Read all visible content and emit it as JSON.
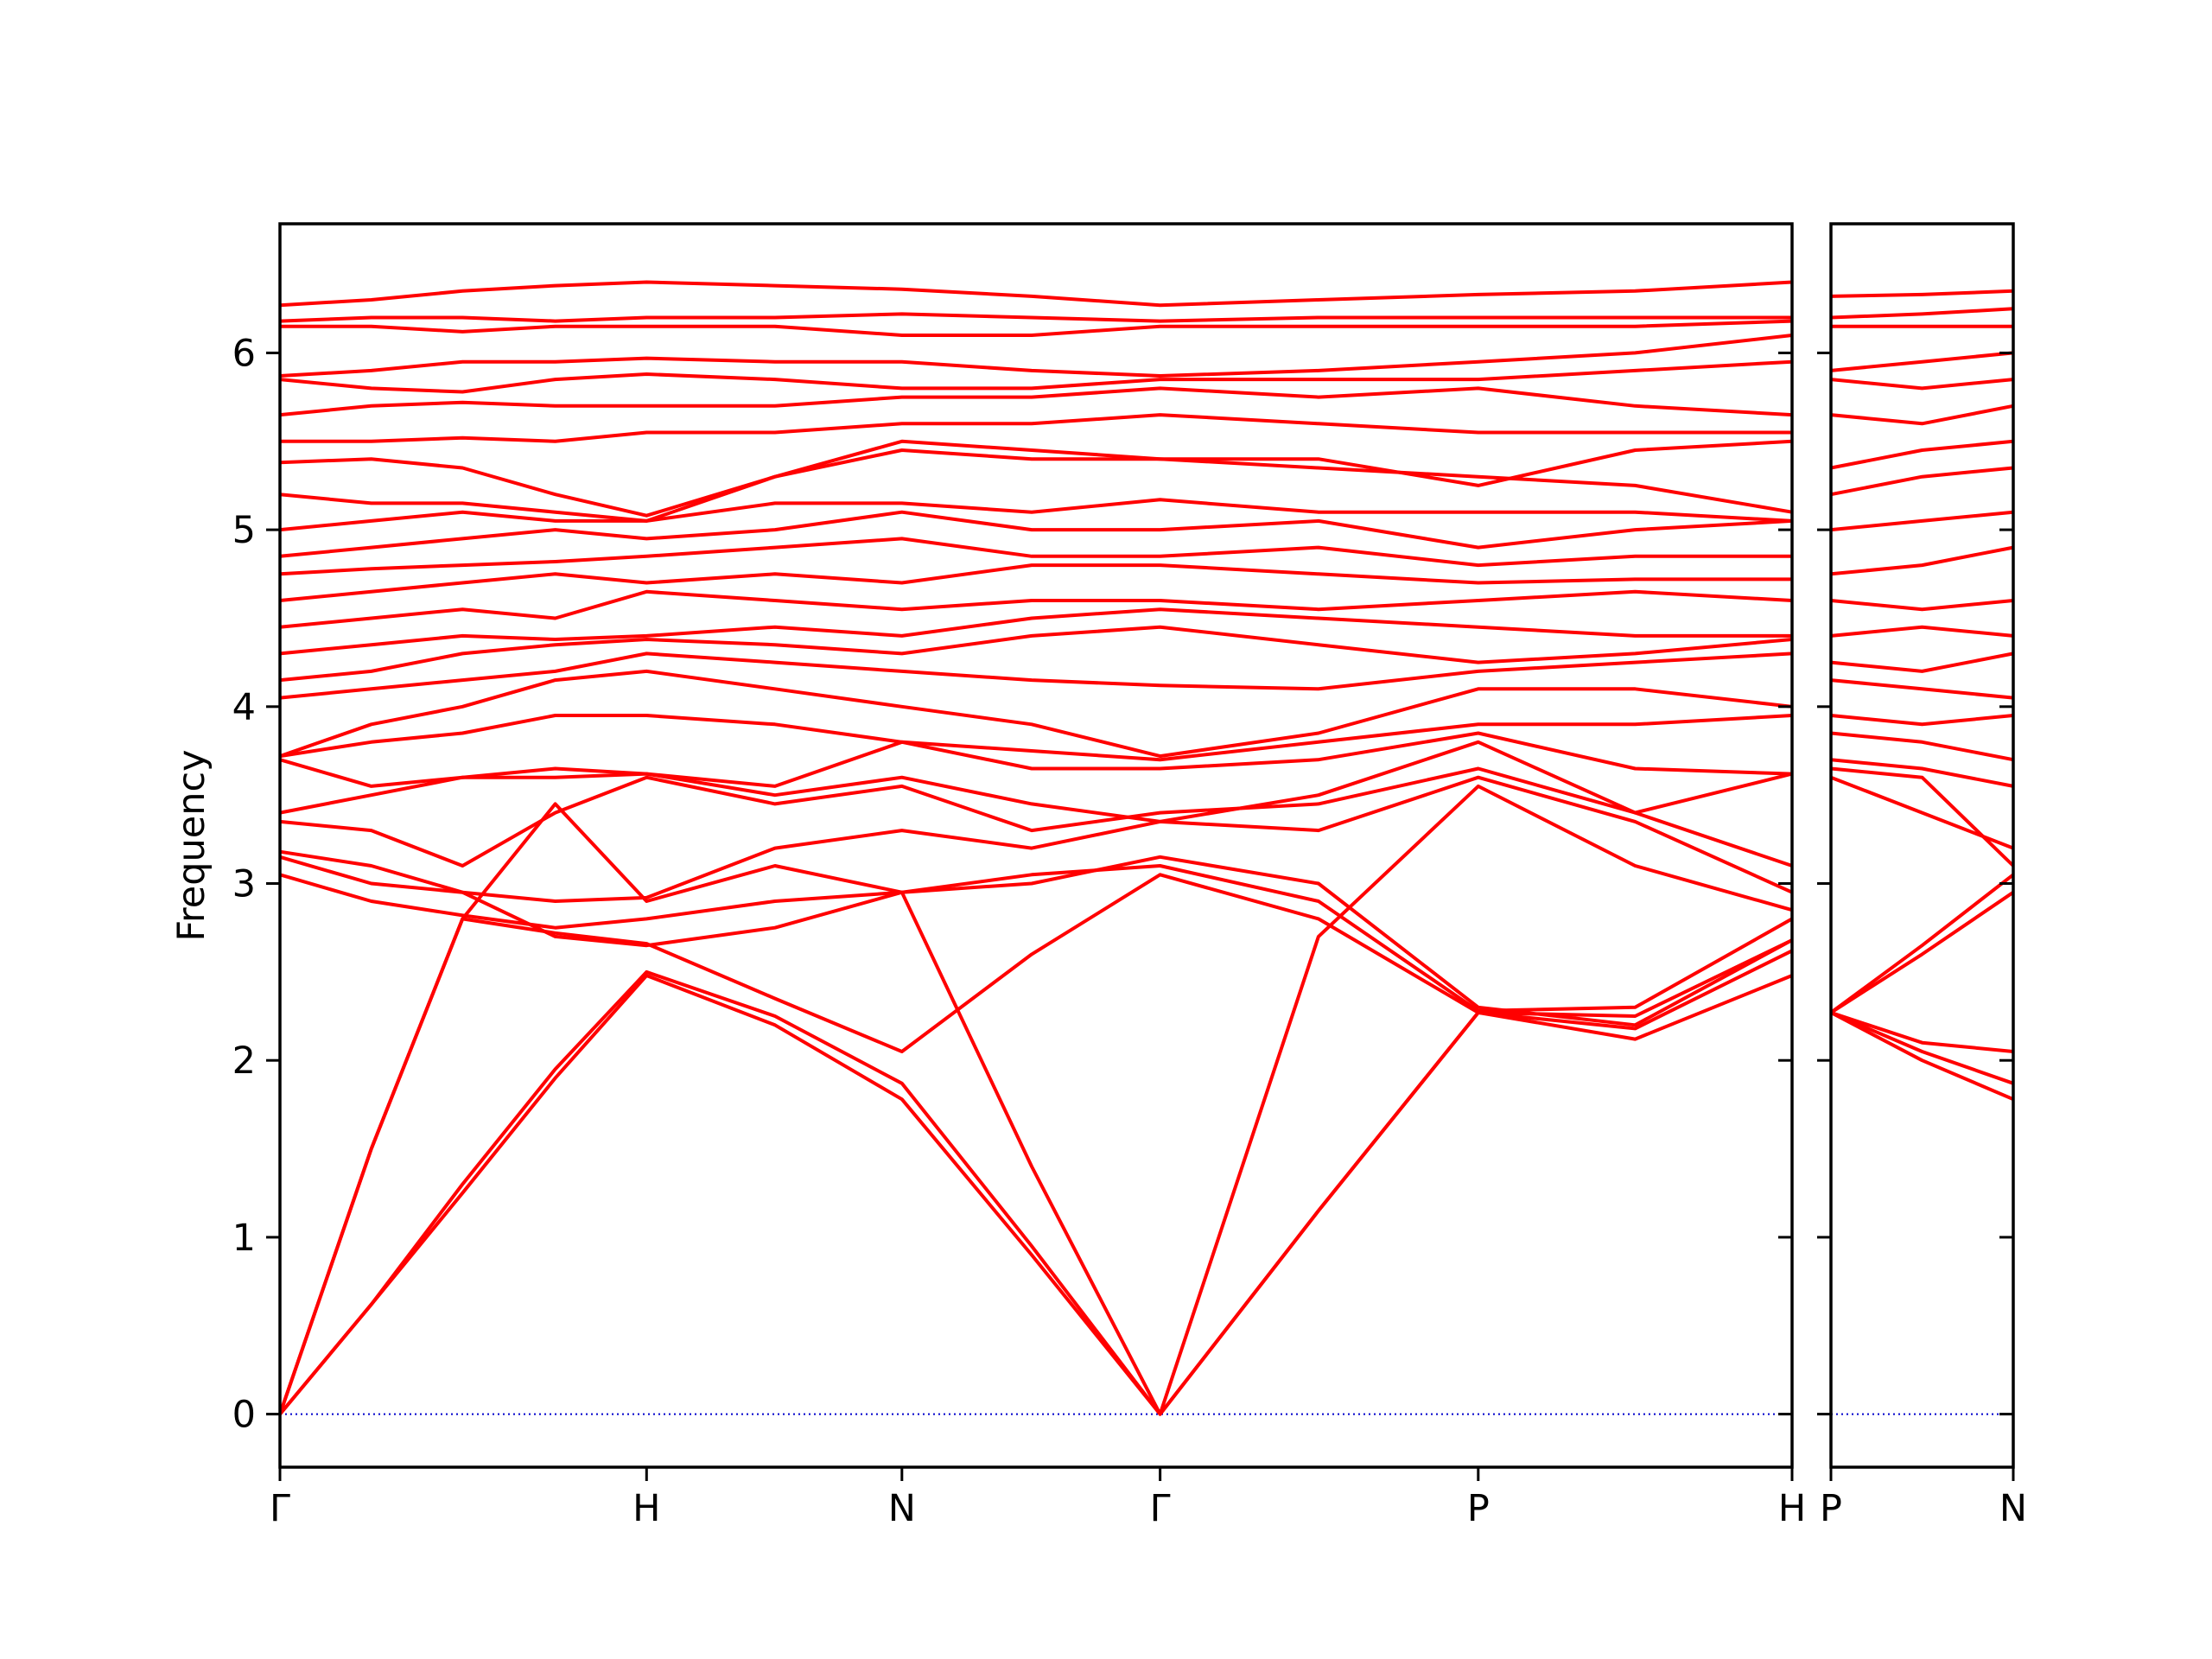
{
  "chart_data": [
    {
      "type": "line",
      "y_label": "Frequency",
      "color": "#ff0000",
      "x": [
        0,
        0.064,
        0.128,
        0.193,
        0.257,
        0.347,
        0.436,
        0.527,
        0.617,
        0.728,
        0.84,
        0.95,
        1.06
      ],
      "xlim": [
        0,
        1.06
      ],
      "xticks": [
        {
          "value": 0,
          "label": "Γ"
        },
        {
          "value": 0.257,
          "label": "H"
        },
        {
          "value": 0.436,
          "label": "N"
        },
        {
          "value": 0.617,
          "label": "Γ"
        },
        {
          "value": 0.84,
          "label": "P"
        },
        {
          "value": 1.06,
          "label": "H"
        }
      ],
      "ylim": [
        -0.3,
        6.73
      ],
      "yticks": [
        0,
        1,
        2,
        3,
        4,
        5,
        6
      ],
      "reference_line": {
        "y": 0,
        "color": "#0000cc"
      },
      "series": [
        {
          "values": [
            0,
            0.62,
            1.25,
            1.9,
            2.48,
            2.2,
            1.78,
            0.9,
            0,
            1.15,
            2.27,
            2.12,
            2.48
          ]
        },
        {
          "values": [
            0,
            0.62,
            1.3,
            1.95,
            2.5,
            2.25,
            1.87,
            0.95,
            0,
            1.15,
            2.27,
            2.18,
            2.62
          ]
        },
        {
          "values": [
            0,
            1.5,
            2.8,
            2.72,
            2.66,
            2.35,
            2.05,
            2.6,
            3.05,
            2.8,
            2.27,
            2.25,
            2.68
          ]
        },
        {
          "values": [
            0,
            1.5,
            2.8,
            3.45,
            2.9,
            3.1,
            2.95,
            1.4,
            0,
            2.7,
            3.55,
            3.1,
            2.85
          ]
        },
        {
          "values": [
            3.05,
            2.9,
            2.82,
            2.75,
            2.8,
            2.9,
            2.95,
            3.0,
            3.15,
            3.0,
            2.3,
            2.2,
            2.68
          ]
        },
        {
          "values": [
            3.15,
            3.0,
            2.95,
            2.7,
            2.65,
            2.75,
            2.95,
            3.05,
            3.1,
            2.9,
            2.28,
            2.3,
            2.8
          ]
        },
        {
          "values": [
            3.18,
            3.1,
            2.95,
            2.9,
            2.92,
            3.2,
            3.3,
            3.2,
            3.35,
            3.3,
            3.6,
            3.35,
            2.95
          ]
        },
        {
          "values": [
            3.35,
            3.3,
            3.1,
            3.4,
            3.6,
            3.45,
            3.55,
            3.3,
            3.4,
            3.45,
            3.65,
            3.4,
            3.1
          ]
        },
        {
          "values": [
            3.4,
            3.5,
            3.6,
            3.6,
            3.62,
            3.5,
            3.6,
            3.45,
            3.35,
            3.5,
            3.8,
            3.4,
            3.62
          ]
        },
        {
          "values": [
            3.7,
            3.55,
            3.6,
            3.65,
            3.62,
            3.55,
            3.8,
            3.65,
            3.65,
            3.7,
            3.85,
            3.65,
            3.62
          ]
        },
        {
          "values": [
            3.72,
            3.8,
            3.85,
            3.95,
            3.95,
            3.9,
            3.8,
            3.75,
            3.7,
            3.8,
            3.9,
            3.9,
            3.95
          ]
        },
        {
          "values": [
            3.72,
            3.9,
            4.0,
            4.15,
            4.2,
            4.1,
            4.0,
            3.9,
            3.72,
            3.85,
            4.1,
            4.1,
            4.0
          ]
        },
        {
          "values": [
            4.05,
            4.1,
            4.15,
            4.2,
            4.3,
            4.25,
            4.2,
            4.15,
            4.12,
            4.1,
            4.2,
            4.25,
            4.3
          ]
        },
        {
          "values": [
            4.15,
            4.2,
            4.3,
            4.35,
            4.38,
            4.35,
            4.3,
            4.4,
            4.45,
            4.35,
            4.25,
            4.3,
            4.38
          ]
        },
        {
          "values": [
            4.3,
            4.35,
            4.4,
            4.38,
            4.4,
            4.45,
            4.4,
            4.5,
            4.55,
            4.5,
            4.45,
            4.4,
            4.4
          ]
        },
        {
          "values": [
            4.45,
            4.5,
            4.55,
            4.5,
            4.65,
            4.6,
            4.55,
            4.6,
            4.6,
            4.55,
            4.6,
            4.65,
            4.6
          ]
        },
        {
          "values": [
            4.6,
            4.65,
            4.7,
            4.75,
            4.7,
            4.75,
            4.7,
            4.8,
            4.8,
            4.75,
            4.7,
            4.72,
            4.72
          ]
        },
        {
          "values": [
            4.75,
            4.78,
            4.8,
            4.82,
            4.85,
            4.9,
            4.95,
            4.85,
            4.85,
            4.9,
            4.8,
            4.85,
            4.85
          ]
        },
        {
          "values": [
            4.85,
            4.9,
            4.95,
            5.0,
            4.95,
            5.0,
            5.1,
            5.0,
            5.0,
            5.05,
            4.9,
            5.0,
            5.05
          ]
        },
        {
          "values": [
            5.0,
            5.05,
            5.1,
            5.05,
            5.05,
            5.15,
            5.15,
            5.1,
            5.17,
            5.1,
            5.1,
            5.1,
            5.05
          ]
        },
        {
          "values": [
            5.2,
            5.15,
            5.15,
            5.1,
            5.05,
            5.3,
            5.45,
            5.4,
            5.4,
            5.35,
            5.3,
            5.25,
            5.1
          ]
        },
        {
          "values": [
            5.38,
            5.4,
            5.35,
            5.2,
            5.08,
            5.3,
            5.5,
            5.45,
            5.4,
            5.4,
            5.25,
            5.45,
            5.5
          ]
        },
        {
          "values": [
            5.5,
            5.5,
            5.52,
            5.5,
            5.55,
            5.55,
            5.6,
            5.6,
            5.65,
            5.6,
            5.55,
            5.55,
            5.55
          ]
        },
        {
          "values": [
            5.65,
            5.7,
            5.72,
            5.7,
            5.7,
            5.7,
            5.75,
            5.75,
            5.8,
            5.75,
            5.8,
            5.7,
            5.65
          ]
        },
        {
          "values": [
            5.85,
            5.8,
            5.78,
            5.85,
            5.88,
            5.85,
            5.8,
            5.8,
            5.85,
            5.85,
            5.85,
            5.9,
            5.95
          ]
        },
        {
          "values": [
            5.87,
            5.9,
            5.95,
            5.95,
            5.97,
            5.95,
            5.95,
            5.9,
            5.87,
            5.9,
            5.95,
            6.0,
            6.1
          ]
        },
        {
          "values": [
            6.15,
            6.15,
            6.12,
            6.15,
            6.15,
            6.15,
            6.1,
            6.1,
            6.15,
            6.15,
            6.15,
            6.15,
            6.18
          ]
        },
        {
          "values": [
            6.18,
            6.2,
            6.2,
            6.18,
            6.2,
            6.2,
            6.22,
            6.2,
            6.18,
            6.2,
            6.2,
            6.2,
            6.2
          ]
        },
        {
          "values": [
            6.27,
            6.3,
            6.35,
            6.38,
            6.4,
            6.38,
            6.36,
            6.32,
            6.27,
            6.3,
            6.33,
            6.35,
            6.4
          ]
        }
      ]
    },
    {
      "type": "line",
      "color": "#ff0000",
      "x": [
        0,
        0.064,
        0.128
      ],
      "xlim": [
        0,
        0.128
      ],
      "xticks": [
        {
          "value": 0,
          "label": "P"
        },
        {
          "value": 0.128,
          "label": "N"
        }
      ],
      "ylim": [
        -0.3,
        6.73
      ],
      "yticks": [
        0,
        1,
        2,
        3,
        4,
        5,
        6
      ],
      "reference_line": {
        "y": 0,
        "color": "#0000cc"
      },
      "series": [
        {
          "values": [
            2.27,
            2.0,
            1.78
          ]
        },
        {
          "values": [
            2.27,
            2.05,
            1.87
          ]
        },
        {
          "values": [
            2.27,
            2.1,
            2.05
          ]
        },
        {
          "values": [
            2.27,
            2.6,
            2.95
          ]
        },
        {
          "values": [
            2.27,
            2.65,
            3.05
          ]
        },
        {
          "values": [
            3.6,
            3.4,
            3.2
          ]
        },
        {
          "values": [
            3.65,
            3.6,
            3.1
          ]
        },
        {
          "values": [
            3.7,
            3.65,
            3.55
          ]
        },
        {
          "values": [
            3.85,
            3.8,
            3.7
          ]
        },
        {
          "values": [
            3.95,
            3.9,
            3.95
          ]
        },
        {
          "values": [
            4.15,
            4.1,
            4.05
          ]
        },
        {
          "values": [
            4.25,
            4.2,
            4.3
          ]
        },
        {
          "values": [
            4.4,
            4.45,
            4.4
          ]
        },
        {
          "values": [
            4.6,
            4.55,
            4.6
          ]
        },
        {
          "values": [
            4.75,
            4.8,
            4.9
          ]
        },
        {
          "values": [
            5.0,
            5.05,
            5.1
          ]
        },
        {
          "values": [
            5.2,
            5.3,
            5.35
          ]
        },
        {
          "values": [
            5.35,
            5.45,
            5.5
          ]
        },
        {
          "values": [
            5.65,
            5.6,
            5.7
          ]
        },
        {
          "values": [
            5.85,
            5.8,
            5.85
          ]
        },
        {
          "values": [
            5.9,
            5.95,
            6.0
          ]
        },
        {
          "values": [
            6.15,
            6.15,
            6.15
          ]
        },
        {
          "values": [
            6.2,
            6.22,
            6.25
          ]
        },
        {
          "values": [
            6.32,
            6.33,
            6.35
          ]
        }
      ]
    }
  ]
}
